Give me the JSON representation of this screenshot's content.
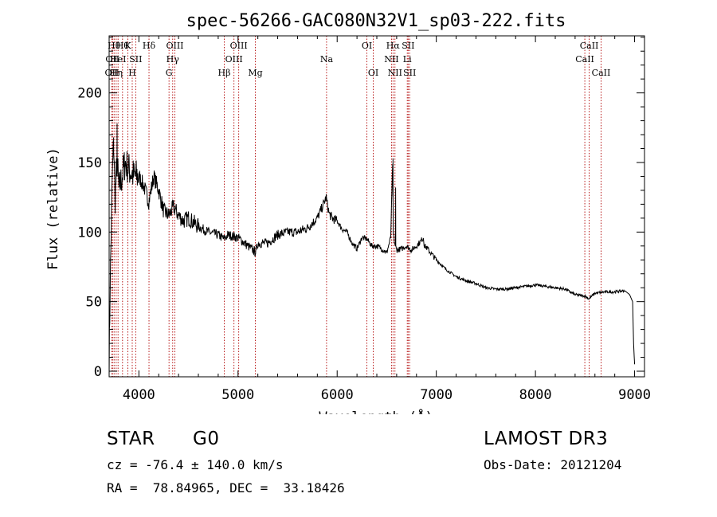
{
  "chart_data": {
    "type": "line",
    "title": "spec-56266-GAC080N32V1_sp03-222.fits",
    "xlabel": "Wavelength (Å)",
    "ylabel": "Flux (relative)",
    "xlim": [
      3700,
      9100
    ],
    "ylim": [
      -4,
      241
    ],
    "x_ticks": [
      4000,
      5000,
      6000,
      7000,
      8000,
      9000
    ],
    "y_ticks": [
      0,
      50,
      100,
      150,
      200
    ],
    "line_color": "#000000",
    "marker_color": "#b00000",
    "series": [
      {
        "name": "spectrum",
        "x": [
          3700,
          3710,
          3720,
          3730,
          3745,
          3760,
          3780,
          3800,
          3830,
          3860,
          3900,
          3950,
          4000,
          4050,
          4100,
          4150,
          4200,
          4250,
          4300,
          4350,
          4400,
          4450,
          4500,
          4600,
          4700,
          4800,
          4860,
          4900,
          5000,
          5100,
          5170,
          5180,
          5200,
          5300,
          5400,
          5500,
          5600,
          5700,
          5800,
          5850,
          5890,
          5900,
          5920,
          5950,
          6000,
          6050,
          6100,
          6150,
          6200,
          6250,
          6300,
          6350,
          6400,
          6450,
          6500,
          6540,
          6560,
          6563,
          6566,
          6580,
          6600,
          6650,
          6700,
          6750,
          6800,
          6860,
          6870,
          6880,
          6900,
          7000,
          7100,
          7200,
          7300,
          7400,
          7500,
          7600,
          7700,
          7800,
          7900,
          8000,
          8100,
          8200,
          8300,
          8400,
          8500,
          8540,
          8600,
          8700,
          8800,
          8900,
          8950,
          8980,
          8990,
          9000
        ],
        "y": [
          0,
          60,
          100,
          135,
          165,
          125,
          150,
          130,
          140,
          150,
          145,
          140,
          140,
          133,
          122,
          140,
          130,
          115,
          112,
          118,
          112,
          108,
          110,
          104,
          100,
          98,
          95,
          98,
          96,
          90,
          86,
          86,
          92,
          92,
          98,
          100,
          100,
          103,
          110,
          118,
          125,
          120,
          113,
          110,
          108,
          102,
          100,
          92,
          88,
          96,
          95,
          90,
          90,
          88,
          85,
          96,
          150,
          124,
          100,
          92,
          87,
          88,
          90,
          87,
          90,
          95,
          96,
          90,
          89,
          80,
          73,
          68,
          65,
          63,
          60,
          59,
          59,
          60,
          61,
          62,
          61,
          60,
          59,
          55,
          54,
          52,
          56,
          57,
          57,
          58,
          55,
          50,
          20,
          5
        ],
        "spikes": [
          {
            "x": 6563,
            "y": 153
          },
          {
            "x": 6590,
            "y": 132
          },
          {
            "x": 3780,
            "y": 178
          },
          {
            "x": 3745,
            "y": 168
          }
        ]
      }
    ],
    "line_markers": [
      {
        "x": 3727,
        "label": "OII",
        "row": 2
      },
      {
        "x": 3734,
        "label": "OII",
        "row": 1
      },
      {
        "x": 3750,
        "label": "Hθ",
        "row": 0
      },
      {
        "x": 3771,
        "label": "Hη",
        "row": 2
      },
      {
        "x": 3790,
        "label": "HeI",
        "row": 1
      },
      {
        "x": 3835,
        "label": "Hθ",
        "row": 0
      },
      {
        "x": 3889,
        "label": "K",
        "row": 0
      },
      {
        "x": 3933,
        "label": "H",
        "row": 2
      },
      {
        "x": 3968,
        "label": "SII",
        "row": 1
      },
      {
        "x": 4102,
        "label": "Hδ",
        "row": 0
      },
      {
        "x": 4304,
        "label": "G",
        "row": 2
      },
      {
        "x": 4341,
        "label": "Hγ",
        "row": 1
      },
      {
        "x": 4363,
        "label": "OIII",
        "row": 0
      },
      {
        "x": 4861,
        "label": "Hβ",
        "row": 2
      },
      {
        "x": 4959,
        "label": "OIII",
        "row": 1
      },
      {
        "x": 5007,
        "label": "OIII",
        "row": 0
      },
      {
        "x": 5175,
        "label": "Mg",
        "row": 2
      },
      {
        "x": 5893,
        "label": "Na",
        "row": 1
      },
      {
        "x": 6300,
        "label": "OI",
        "row": 0
      },
      {
        "x": 6364,
        "label": "OI",
        "row": 2
      },
      {
        "x": 6548,
        "label": "NII",
        "row": 1
      },
      {
        "x": 6563,
        "label": "Hα",
        "row": 0
      },
      {
        "x": 6583,
        "label": "NII",
        "row": 2
      },
      {
        "x": 6707,
        "label": "Li",
        "row": 1
      },
      {
        "x": 6716,
        "label": "SII",
        "row": 0
      },
      {
        "x": 6731,
        "label": "SII",
        "row": 2
      },
      {
        "x": 8498,
        "label": "CaII",
        "row": 1
      },
      {
        "x": 8542,
        "label": "CaII",
        "row": 0
      },
      {
        "x": 8662,
        "label": "CaII",
        "row": 2
      }
    ]
  },
  "info": {
    "class": "STAR",
    "subclass": "G0",
    "survey": "LAMOST DR3",
    "redshift": "cz = -76.4 ± 140.0 km/s",
    "obs_date": "Obs-Date: 20121204",
    "coords": "RA =  78.84965, DEC =  33.18426"
  }
}
